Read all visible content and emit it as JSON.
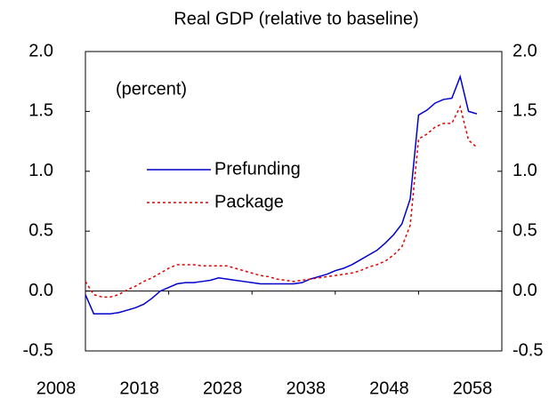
{
  "chart_data": {
    "type": "line",
    "title": "Real GDP (relative to baseline)",
    "annotation": "(percent)",
    "x": [
      2008,
      2009,
      2010,
      2011,
      2012,
      2013,
      2014,
      2015,
      2016,
      2017,
      2018,
      2019,
      2020,
      2021,
      2022,
      2023,
      2024,
      2025,
      2026,
      2027,
      2028,
      2029,
      2030,
      2031,
      2032,
      2033,
      2034,
      2035,
      2036,
      2037,
      2038,
      2039,
      2040,
      2041,
      2042,
      2043,
      2044,
      2045,
      2046,
      2047,
      2048,
      2049,
      2050,
      2051,
      2052,
      2053,
      2054,
      2055
    ],
    "series": [
      {
        "name": "Prefunding",
        "color": "#0000cc",
        "dash": "solid",
        "values": [
          -0.03,
          -0.19,
          -0.19,
          -0.19,
          -0.18,
          -0.16,
          -0.14,
          -0.11,
          -0.06,
          0.0,
          0.03,
          0.06,
          0.07,
          0.07,
          0.08,
          0.09,
          0.11,
          0.1,
          0.09,
          0.08,
          0.07,
          0.06,
          0.06,
          0.06,
          0.06,
          0.06,
          0.07,
          0.1,
          0.12,
          0.14,
          0.17,
          0.19,
          0.22,
          0.26,
          0.3,
          0.34,
          0.4,
          0.47,
          0.56,
          0.77,
          1.47,
          1.51,
          1.57,
          1.6,
          1.61,
          1.79,
          1.5,
          1.48
        ]
      },
      {
        "name": "Package",
        "color": "#dd0000",
        "dash": "dotted",
        "values": [
          0.08,
          -0.03,
          -0.05,
          -0.05,
          -0.03,
          0.01,
          0.04,
          0.08,
          0.11,
          0.15,
          0.19,
          0.22,
          0.22,
          0.22,
          0.21,
          0.21,
          0.21,
          0.21,
          0.19,
          0.17,
          0.15,
          0.13,
          0.12,
          0.1,
          0.09,
          0.08,
          0.09,
          0.1,
          0.11,
          0.12,
          0.13,
          0.14,
          0.15,
          0.17,
          0.2,
          0.22,
          0.25,
          0.3,
          0.37,
          0.55,
          1.27,
          1.31,
          1.37,
          1.4,
          1.4,
          1.54,
          1.26,
          1.2
        ]
      }
    ],
    "xlim": [
      2008,
      2058
    ],
    "xticks": [
      2008,
      2018,
      2028,
      2038,
      2048,
      2058
    ],
    "ylim": [
      -0.5,
      2.0
    ],
    "yticks": [
      {
        "value": -0.5,
        "label": "-0.5"
      },
      {
        "value": 0,
        "label": "0.0"
      },
      {
        "value": 0.5,
        "label": "0.5"
      },
      {
        "value": 1,
        "label": "1.0"
      },
      {
        "value": 1.5,
        "label": "1.5"
      },
      {
        "value": 2,
        "label": "2.0"
      }
    ],
    "y2lim": [
      -0.5,
      2.0
    ],
    "y2ticks": [
      {
        "value": -0.5,
        "label": "-0.5"
      },
      {
        "value": 0,
        "label": "0.0"
      },
      {
        "value": 0.5,
        "label": "0.5"
      },
      {
        "value": 1,
        "label": "1.0"
      },
      {
        "value": 1.5,
        "label": "1.5"
      },
      {
        "value": 2,
        "label": "2.0"
      }
    ]
  }
}
